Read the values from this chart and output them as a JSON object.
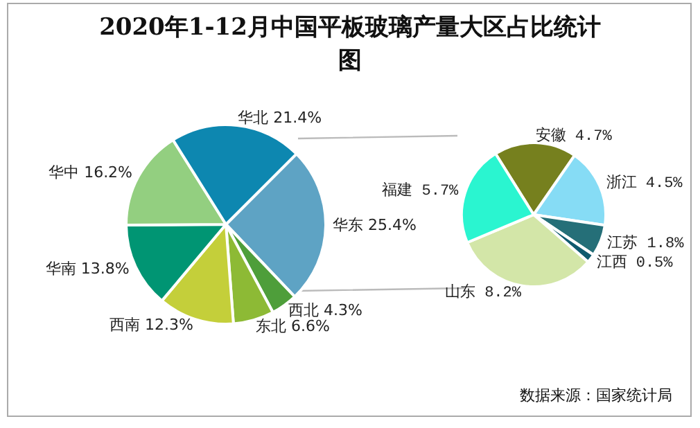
{
  "chart_data": [
    {
      "type": "pie",
      "title": "2020年1-12月中国平板玻璃产量大区占比统计图",
      "categories": [
        "华东",
        "西北",
        "东北",
        "西南",
        "华南",
        "华中",
        "华北"
      ],
      "values": [
        25.4,
        4.3,
        6.6,
        12.3,
        13.8,
        16.2,
        21.4
      ],
      "colors": [
        "#5ea3c4",
        "#4e9e3a",
        "#8dba35",
        "#c4cf3a",
        "#009573",
        "#93cf80",
        "#0d87b0"
      ],
      "value_labels": [
        "25.4%",
        "4.3%",
        "6.6%",
        "12.3%",
        "13.8%",
        "16.2%",
        "21.4%"
      ]
    },
    {
      "type": "pie",
      "categories": [
        "安徽",
        "浙江",
        "江苏",
        "江西",
        "山东",
        "福建"
      ],
      "values": [
        4.7,
        4.5,
        1.8,
        0.5,
        8.2,
        5.7
      ],
      "colors": [
        "#76801e",
        "#86dcf5",
        "#256f78",
        "#0f5a6e",
        "#d3e6a8",
        "#2af5d0"
      ],
      "value_labels": [
        "4.7%",
        "4.5%",
        "1.8%",
        "0.5%",
        "8.2%",
        "5.7%"
      ],
      "annotations": [
        "数据来源：国家统计局"
      ]
    }
  ]
}
